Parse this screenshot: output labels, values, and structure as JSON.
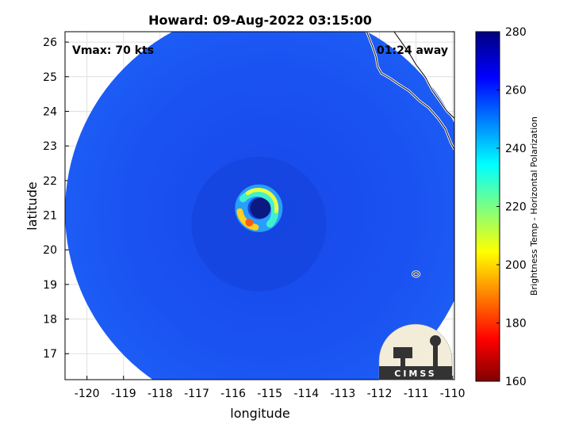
{
  "chart_data": {
    "type": "heatmap",
    "title": "Howard: 09-Aug-2022 03:15:00",
    "xlabel": "longitude",
    "ylabel": "latitude",
    "xlim": [
      -120.6,
      -109.95
    ],
    "ylim": [
      16.25,
      26.3
    ],
    "xticks": [
      -120,
      -119,
      -118,
      -117,
      -116,
      -115,
      -114,
      -113,
      -112,
      -111,
      -110
    ],
    "yticks": [
      17,
      18,
      19,
      20,
      21,
      22,
      23,
      24,
      25,
      26
    ],
    "grid": true,
    "annotations": {
      "vmax": "Vmax: 70 kts",
      "time_offset": "01:24 away"
    },
    "storm_center": {
      "lon": -115.3,
      "lat": 21.2
    },
    "swath": {
      "center_lon": -115.0,
      "center_lat": 21.1,
      "radius_deg": 5.6
    },
    "colorbar": {
      "label": "Brightness Temp - Horizontal Polarization",
      "range": [
        160,
        280
      ],
      "ticks": [
        160,
        180,
        200,
        220,
        240,
        260,
        280
      ],
      "colormap": "jet"
    },
    "background_value": 258
  },
  "logo": {
    "text": "CIMSS"
  },
  "colors": {
    "ocean": "#1a4ff0",
    "coast": "#ffffff"
  }
}
